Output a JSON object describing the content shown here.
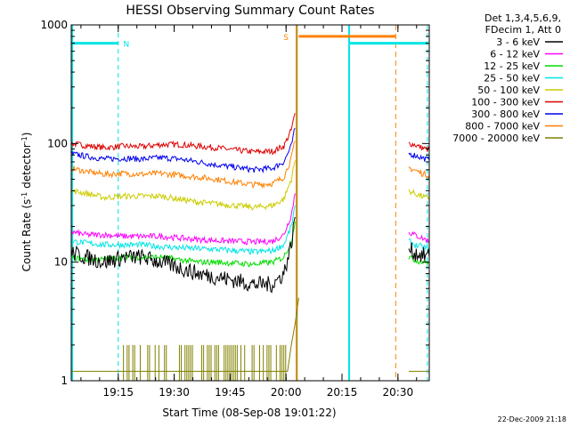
{
  "chart_data": {
    "type": "line",
    "title": "HESSI Observing Summary Count Rates",
    "xlabel": "Start Time (08-Sep-08 19:01:22)",
    "ylabel_main": "Count Rate (s",
    "ylabel_sup1": "-1",
    "ylabel_mid": " detector",
    "ylabel_sup2": "-1",
    "ylabel_end": ")",
    "ylog": true,
    "xlim": [
      1,
      97
    ],
    "ylim": [
      1,
      1000
    ],
    "x_ticks": [
      {
        "label": "19:15",
        "x": 13.6
      },
      {
        "label": "19:30",
        "x": 28.6
      },
      {
        "label": "19:45",
        "x": 43.6
      },
      {
        "label": "20:00",
        "x": 58.6
      },
      {
        "label": "20:15",
        "x": 73.6
      },
      {
        "label": "20:30",
        "x": 88.6
      }
    ],
    "y_ticks": [
      {
        "label": "1",
        "y": 1
      },
      {
        "label": "10",
        "y": 10
      },
      {
        "label": "100",
        "y": 100
      },
      {
        "label": "1000",
        "y": 1000
      }
    ],
    "legend": {
      "position": "top-right outside",
      "header": [
        "Det 1,3,4,5,6,9,",
        "FDecim 1, Att 0"
      ],
      "entries": [
        {
          "label": "3 - 6 keV",
          "color": "#000000"
        },
        {
          "label": "6 - 12 keV",
          "color": "#ff00ff"
        },
        {
          "label": "12 - 25 keV",
          "color": "#00dd00"
        },
        {
          "label": "25 - 50 keV",
          "color": "#00e5e5"
        },
        {
          "label": "50 - 100 keV",
          "color": "#cccc00"
        },
        {
          "label": "100 - 300 keV",
          "color": "#dd0000"
        },
        {
          "label": "300 - 800 keV",
          "color": "#0000ee"
        },
        {
          "label": "800 - 7000 keV",
          "color": "#ff8000"
        },
        {
          "label": "7000 - 20000 keV",
          "color": "#808000"
        }
      ]
    },
    "data_gaps": [
      [
        61.5,
        91.5
      ]
    ],
    "series": [
      {
        "color": "#dd0000",
        "x": [
          1,
          5,
          10,
          15,
          20,
          25,
          30,
          35,
          40,
          45,
          50,
          55,
          58,
          60,
          61
        ],
        "y": [
          100,
          96,
          92,
          95,
          94,
          98,
          98,
          95,
          92,
          88,
          85,
          86,
          95,
          130,
          180
        ]
      },
      {
        "color": "#dd0000",
        "x": [
          91.5,
          93,
          95,
          97
        ],
        "y": [
          100,
          98,
          92,
          88
        ]
      },
      {
        "color": "#0000ee",
        "x": [
          1,
          5,
          10,
          15,
          20,
          25,
          30,
          35,
          40,
          45,
          50,
          55,
          58,
          60,
          61
        ],
        "y": [
          82,
          78,
          74,
          75,
          74,
          76,
          74,
          70,
          66,
          63,
          60,
          62,
          70,
          95,
          135
        ]
      },
      {
        "color": "#0000ee",
        "x": [
          91.5,
          93,
          95,
          97
        ],
        "y": [
          82,
          80,
          76,
          72
        ]
      },
      {
        "color": "#ff8000",
        "x": [
          1,
          5,
          10,
          15,
          20,
          25,
          30,
          35,
          40,
          45,
          50,
          55,
          58,
          60,
          61
        ],
        "y": [
          62,
          58,
          55,
          56,
          55,
          56,
          54,
          52,
          50,
          47,
          45,
          46,
          52,
          75,
          105
        ]
      },
      {
        "color": "#ff8000",
        "x": [
          91.5,
          93,
          95,
          97
        ],
        "y": [
          62,
          60,
          56,
          54
        ]
      },
      {
        "color": "#cccc00",
        "x": [
          1,
          5,
          10,
          15,
          20,
          25,
          30,
          35,
          40,
          45,
          50,
          55,
          58,
          60,
          61
        ],
        "y": [
          40,
          38,
          35,
          36,
          36,
          36,
          34,
          32,
          31,
          30,
          29,
          30,
          34,
          50,
          72
        ]
      },
      {
        "color": "#cccc00",
        "x": [
          91.5,
          93,
          95,
          97
        ],
        "y": [
          40,
          38,
          36,
          34
        ]
      },
      {
        "color": "#ff00ff",
        "x": [
          1,
          5,
          10,
          15,
          20,
          25,
          30,
          35,
          40,
          45,
          50,
          55,
          58,
          60,
          61
        ],
        "y": [
          18,
          17,
          17,
          16.5,
          16.5,
          16.5,
          16,
          15.5,
          15.2,
          15,
          14.8,
          15,
          17,
          25,
          38
        ]
      },
      {
        "color": "#ff00ff",
        "x": [
          91.5,
          93,
          95,
          97
        ],
        "y": [
          18,
          17,
          16,
          15
        ]
      },
      {
        "color": "#00e5e5",
        "x": [
          1,
          5,
          10,
          15,
          20,
          25,
          30,
          35,
          40,
          45,
          50,
          55,
          58,
          60,
          61
        ],
        "y": [
          15,
          14.5,
          14,
          14,
          14,
          13.5,
          13.2,
          13,
          12.8,
          12.5,
          12.2,
          12.5,
          14,
          20,
          30
        ]
      },
      {
        "color": "#00e5e5",
        "x": [
          91.5,
          93,
          95,
          97
        ],
        "y": [
          15,
          14,
          13.5,
          13
        ]
      },
      {
        "color": "#00dd00",
        "x": [
          1,
          5,
          10,
          15,
          20,
          25,
          30,
          35,
          40,
          45,
          50,
          55,
          58,
          60,
          61
        ],
        "y": [
          11,
          10.5,
          10.5,
          11,
          11,
          11,
          10.5,
          10,
          10,
          9.8,
          9.6,
          10,
          11,
          15,
          22
        ]
      },
      {
        "color": "#00dd00",
        "x": [
          91.5,
          93,
          95,
          97
        ],
        "y": [
          11,
          10.5,
          10,
          10
        ]
      },
      {
        "color": "#000000",
        "x": [
          1,
          5,
          10,
          15,
          20,
          25,
          30,
          35,
          40,
          45,
          50,
          55,
          58,
          60,
          61
        ],
        "y": [
          12,
          11,
          10,
          11,
          11,
          10,
          9,
          8,
          7.5,
          7,
          6.5,
          6.5,
          8,
          14,
          24
        ]
      },
      {
        "color": "#000000",
        "x": [
          91.5,
          93,
          95,
          97
        ],
        "y": [
          13,
          12,
          11.5,
          11
        ]
      },
      {
        "color": "#808000",
        "x": [
          1,
          59,
          60,
          61,
          62
        ],
        "y": [
          1.2,
          1.2,
          2,
          3,
          5
        ]
      },
      {
        "color": "#808000",
        "x": [
          91.5,
          97
        ],
        "y": [
          1.2,
          1.2
        ]
      }
    ],
    "bars_series": {
      "color": "#808000",
      "x_from": 15,
      "x_to": 59,
      "y": 2
    },
    "annotations": {
      "night_bars": [
        {
          "x1": 1,
          "x2": 13.6,
          "y": 700
        },
        {
          "x1": 75.5,
          "x2": 96.5,
          "y": 700
        }
      ],
      "night_label": "N",
      "night_label_x": 14.5,
      "saa_bar": {
        "x1": 62,
        "x2": 88,
        "y": 800
      },
      "saa_label": "S",
      "saa_label_x": 61
    }
  },
  "footer_timestamp": "22-Dec-2009 21:18"
}
